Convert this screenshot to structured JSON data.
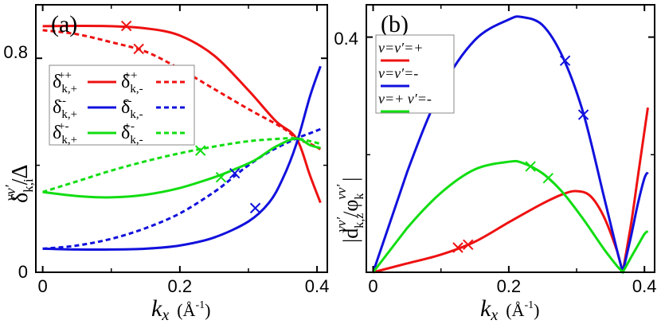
{
  "colors": {
    "red": "#ee1111",
    "blue": "#1111dd",
    "green": "#11dd11",
    "axis": "#000000"
  },
  "chart_data": [
    {
      "panel_label": "(a)",
      "type": "line",
      "xlabel": "k",
      "xlabel_sub": "x",
      "xlabel_unit": "(Å",
      "xlabel_unit_sup": "-1",
      "xlabel_unit_close": ")",
      "ylabel": "δ",
      "ylabel_sub": "k,i",
      "ylabel_sup": "vv′",
      "ylabel_tail": "/Δ",
      "xlim": [
        -0.01,
        0.415
      ],
      "ylim": [
        0,
        1.0
      ],
      "xticks": [
        0,
        0.2,
        0.4
      ],
      "xtick_labels": [
        "0",
        "0.2",
        "0.4"
      ],
      "yticks": [
        0,
        0.8
      ],
      "ytick_labels": [
        "0",
        "0.8"
      ],
      "series": [
        {
          "name": "δ k,+ ++",
          "color": "red",
          "dash": false,
          "x": [
            0,
            0.05,
            0.1,
            0.15,
            0.2,
            0.25,
            0.3,
            0.34,
            0.37,
            0.39,
            0.405
          ],
          "y": [
            0.92,
            0.921,
            0.92,
            0.912,
            0.885,
            0.81,
            0.68,
            0.565,
            0.5,
            0.36,
            0.26
          ],
          "markers": [
            {
              "x": 0.122,
              "y": 0.921
            }
          ]
        },
        {
          "name": "δ k,- ++",
          "color": "red",
          "dash": true,
          "x": [
            0,
            0.05,
            0.1,
            0.15,
            0.2,
            0.25,
            0.3,
            0.35,
            0.37,
            0.39,
            0.405
          ],
          "y": [
            0.905,
            0.89,
            0.86,
            0.825,
            0.76,
            0.685,
            0.61,
            0.54,
            0.5,
            0.48,
            0.46
          ],
          "markers": [
            {
              "x": 0.14,
              "y": 0.835
            }
          ]
        },
        {
          "name": "δ k,+ --",
          "color": "blue",
          "dash": false,
          "x": [
            0,
            0.05,
            0.1,
            0.15,
            0.2,
            0.25,
            0.3,
            0.33,
            0.35,
            0.37,
            0.39,
            0.405
          ],
          "y": [
            0.088,
            0.085,
            0.085,
            0.088,
            0.1,
            0.13,
            0.19,
            0.26,
            0.35,
            0.48,
            0.66,
            0.77
          ],
          "markers": [
            {
              "x": 0.31,
              "y": 0.24
            }
          ]
        },
        {
          "name": "δ k,- --",
          "color": "blue",
          "dash": true,
          "x": [
            0,
            0.05,
            0.1,
            0.15,
            0.2,
            0.25,
            0.28,
            0.3,
            0.33,
            0.37,
            0.39,
            0.405
          ],
          "y": [
            0.088,
            0.1,
            0.125,
            0.165,
            0.22,
            0.3,
            0.36,
            0.4,
            0.45,
            0.5,
            0.52,
            0.535
          ],
          "markers": [
            {
              "x": 0.28,
              "y": 0.37
            }
          ]
        },
        {
          "name": "δ k,+ +-",
          "color": "green",
          "dash": false,
          "x": [
            0,
            0.05,
            0.1,
            0.15,
            0.2,
            0.25,
            0.28,
            0.31,
            0.34,
            0.37,
            0.39,
            0.405
          ],
          "y": [
            0.3,
            0.285,
            0.28,
            0.29,
            0.315,
            0.355,
            0.385,
            0.42,
            0.47,
            0.5,
            0.475,
            0.465
          ],
          "markers": [
            {
              "x": 0.26,
              "y": 0.355
            }
          ]
        },
        {
          "name": "δ k,- +-",
          "color": "green",
          "dash": true,
          "x": [
            0,
            0.05,
            0.1,
            0.15,
            0.2,
            0.25,
            0.3,
            0.35,
            0.37,
            0.39,
            0.405
          ],
          "y": [
            0.3,
            0.34,
            0.38,
            0.415,
            0.445,
            0.47,
            0.49,
            0.5,
            0.5,
            0.49,
            0.48
          ],
          "markers": [
            {
              "x": 0.23,
              "y": 0.455
            }
          ]
        }
      ],
      "legend": {
        "position": "left-middle",
        "entries": [
          {
            "sym": "δ",
            "sub": "k,+",
            "sup": "++",
            "color": "red",
            "dash": false
          },
          {
            "sym": "δ",
            "sub": "k,-",
            "sup": "++",
            "color": "red",
            "dash": true
          },
          {
            "sym": "δ",
            "sub": "k,+",
            "sup": "--",
            "color": "blue",
            "dash": false
          },
          {
            "sym": "δ",
            "sub": "k,-",
            "sup": "--",
            "color": "blue",
            "dash": true
          },
          {
            "sym": "δ",
            "sub": "k,+",
            "sup": "+-",
            "color": "green",
            "dash": false
          },
          {
            "sym": "δ",
            "sub": "k,-",
            "sup": "+-",
            "color": "green",
            "dash": true
          }
        ]
      }
    },
    {
      "panel_label": "(b)",
      "type": "line",
      "xlabel": "k",
      "xlabel_sub": "x",
      "xlabel_unit": "(Å",
      "xlabel_unit_sup": "-1",
      "xlabel_unit_close": ")",
      "ylabel_left": "|d",
      "ylabel_sub": "k,z",
      "ylabel_sup": "vv′",
      "ylabel_mid": "/φ",
      "ylabel_sub2": "k",
      "ylabel_sup2": "vv′",
      "ylabel_right": "|",
      "xlim": [
        -0.01,
        0.415
      ],
      "ylim": [
        0,
        0.455
      ],
      "xticks": [
        0,
        0.2,
        0.4
      ],
      "xtick_labels": [
        "0",
        "0.2",
        "0.4"
      ],
      "yticks": [
        0.4
      ],
      "ytick_labels": [
        "0.4"
      ],
      "series": [
        {
          "name": "v=v′=+",
          "color": "red",
          "dash": false,
          "x": [
            0,
            0.05,
            0.1,
            0.15,
            0.2,
            0.25,
            0.28,
            0.3,
            0.32,
            0.34,
            0.36,
            0.368,
            0.38,
            0.39,
            0.4,
            0.405
          ],
          "y": [
            0,
            0.015,
            0.03,
            0.052,
            0.085,
            0.117,
            0.133,
            0.138,
            0.13,
            0.095,
            0.035,
            0,
            0.08,
            0.16,
            0.24,
            0.28
          ],
          "markers": [
            {
              "x": 0.125,
              "y": 0.042
            },
            {
              "x": 0.14,
              "y": 0.047
            }
          ]
        },
        {
          "name": "v=v′=-",
          "color": "blue",
          "dash": false,
          "x": [
            0,
            0.05,
            0.1,
            0.15,
            0.2,
            0.22,
            0.25,
            0.28,
            0.31,
            0.34,
            0.36,
            0.368,
            0.38,
            0.39,
            0.4,
            0.405
          ],
          "y": [
            0,
            0.17,
            0.31,
            0.395,
            0.43,
            0.434,
            0.42,
            0.365,
            0.27,
            0.13,
            0.035,
            0,
            0.06,
            0.115,
            0.16,
            0.17
          ],
          "markers": [
            {
              "x": 0.283,
              "y": 0.36
            },
            {
              "x": 0.31,
              "y": 0.268
            }
          ]
        },
        {
          "name": "v=+ v′=-",
          "color": "green",
          "dash": false,
          "x": [
            0,
            0.05,
            0.1,
            0.15,
            0.2,
            0.22,
            0.25,
            0.28,
            0.31,
            0.34,
            0.36,
            0.368,
            0.38,
            0.39,
            0.4,
            0.405
          ],
          "y": [
            0,
            0.075,
            0.135,
            0.175,
            0.188,
            0.186,
            0.168,
            0.135,
            0.09,
            0.04,
            0.01,
            0,
            0.025,
            0.045,
            0.065,
            0.07
          ],
          "markers": [
            {
              "x": 0.232,
              "y": 0.18
            },
            {
              "x": 0.258,
              "y": 0.16
            }
          ]
        }
      ],
      "legend": {
        "position": "top-left",
        "entries": [
          {
            "label": "v=v′=+",
            "color": "red"
          },
          {
            "label": "v=v′=-",
            "color": "blue"
          },
          {
            "label": "v=+ v′=-",
            "color": "green"
          }
        ]
      }
    }
  ]
}
